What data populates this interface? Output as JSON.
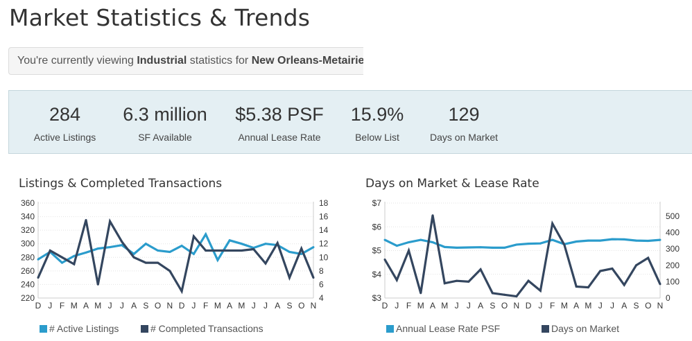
{
  "page": {
    "title": "Market Statistics & Trends"
  },
  "viewing": {
    "prefix": "You're currently viewing ",
    "property_type": "Industrial",
    "middle": " statistics for ",
    "market": "New Orleans-Metairie"
  },
  "stats": [
    {
      "value": "284",
      "label": "Active Listings"
    },
    {
      "value": "6.3 million",
      "label": "SF Available"
    },
    {
      "value": "$5.38 PSF",
      "label": "Annual Lease Rate"
    },
    {
      "value": "15.9%",
      "label": "Below List"
    },
    {
      "value": "129",
      "label": "Days on Market"
    }
  ],
  "colors": {
    "blue": "#2b9ccc",
    "navy": "#34465f",
    "grid": "#e2e2e2",
    "axis": "#cccccc",
    "text": "#333333"
  },
  "chart_data": [
    {
      "type": "line",
      "title": "Listings & Completed Transactions",
      "categories": [
        "D",
        "J",
        "F",
        "M",
        "A",
        "M",
        "J",
        "J",
        "A",
        "S",
        "O",
        "N",
        "D",
        "J",
        "F",
        "M",
        "A",
        "M",
        "J",
        "J",
        "A",
        "S",
        "O",
        "N"
      ],
      "left_axis": {
        "ylim": [
          220,
          360
        ],
        "ticks": [
          220,
          240,
          260,
          280,
          300,
          320,
          340,
          360
        ]
      },
      "right_axis": {
        "ylim": [
          4,
          18
        ],
        "ticks": [
          4,
          6,
          8,
          10,
          12,
          14,
          16,
          18
        ]
      },
      "grid": true,
      "legend_position": "bottom",
      "series": [
        {
          "name": "# Active Listings",
          "axis": "left",
          "color": "#2b9ccc",
          "values": [
            277,
            288,
            272,
            282,
            287,
            293,
            295,
            298,
            285,
            300,
            290,
            288,
            297,
            285,
            314,
            276,
            305,
            300,
            294,
            300,
            298,
            288,
            285,
            295
          ]
        },
        {
          "name": "# Completed Transactions",
          "axis": "right",
          "color": "#34465f",
          "values": [
            7,
            11,
            10,
            9,
            15.5,
            6,
            15.3,
            12.3,
            10,
            9.2,
            9.2,
            8,
            5,
            13.1,
            11,
            11,
            11,
            11,
            11.2,
            9.1,
            12.1,
            7,
            11.3,
            7
          ]
        }
      ]
    },
    {
      "type": "line",
      "title": "Days on Market & Lease Rate",
      "categories": [
        "D",
        "J",
        "F",
        "M",
        "A",
        "M",
        "J",
        "J",
        "A",
        "S",
        "O",
        "N",
        "D",
        "J",
        "F",
        "M",
        "A",
        "M",
        "J",
        "J",
        "A",
        "S",
        "O",
        "N"
      ],
      "left_axis": {
        "ylim": [
          3,
          7
        ],
        "ticks": [
          "$3",
          "$4",
          "$5",
          "$6",
          "$7"
        ],
        "tick_values": [
          3,
          4,
          5,
          6,
          7
        ]
      },
      "right_axis": {
        "ylim": [
          0,
          580
        ],
        "ticks": [
          0,
          100,
          200,
          300,
          400,
          500
        ]
      },
      "grid": true,
      "legend_position": "bottom",
      "series": [
        {
          "name": "Annual Lease Rate PSF",
          "axis": "left",
          "color": "#2b9ccc",
          "values": [
            5.45,
            5.2,
            5.35,
            5.45,
            5.35,
            5.15,
            5.12,
            5.13,
            5.14,
            5.12,
            5.12,
            5.25,
            5.29,
            5.3,
            5.45,
            5.27,
            5.38,
            5.42,
            5.42,
            5.48,
            5.47,
            5.42,
            5.41,
            5.45
          ]
        },
        {
          "name": "Days on Market",
          "axis": "right",
          "color": "#34465f",
          "values": [
            235,
            110,
            290,
            30,
            505,
            90,
            105,
            100,
            175,
            30,
            20,
            10,
            105,
            45,
            455,
            325,
            70,
            65,
            165,
            180,
            80,
            200,
            245,
            85
          ]
        }
      ]
    }
  ]
}
